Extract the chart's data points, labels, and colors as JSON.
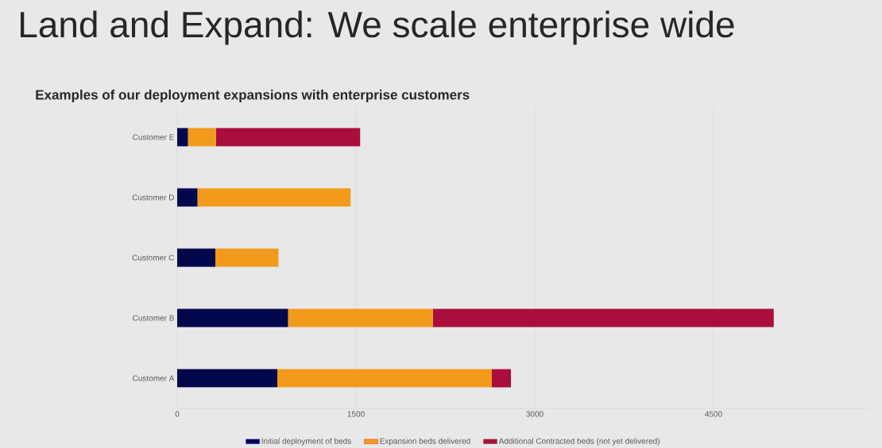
{
  "chart_data": {
    "type": "bar",
    "orientation": "horizontal",
    "stacked": true,
    "title": "Land and Expand: We scale enterprise wide",
    "subtitle": "Examples of our deployment expansions with enterprise customers",
    "categories": [
      "Customer E",
      "Customer D",
      "Customer C",
      "Customer B",
      "Customer A"
    ],
    "series": [
      {
        "name": "Initial deployment of beds",
        "color": "#02084b",
        "values": [
          90,
          170,
          320,
          930,
          840
        ]
      },
      {
        "name": "Expansion beds delivered",
        "color": "#f29a1c",
        "values": [
          235,
          1285,
          530,
          1215,
          1800
        ]
      },
      {
        "name": "Additional Contracted beds (not yet delivered)",
        "color": "#aa0e3c",
        "values": [
          1210,
          null,
          null,
          2860,
          160
        ]
      }
    ],
    "xlim": [
      0,
      5800
    ],
    "xticks": [
      0,
      1500,
      3000,
      4500
    ],
    "grid": "x",
    "legend": "bottom"
  }
}
